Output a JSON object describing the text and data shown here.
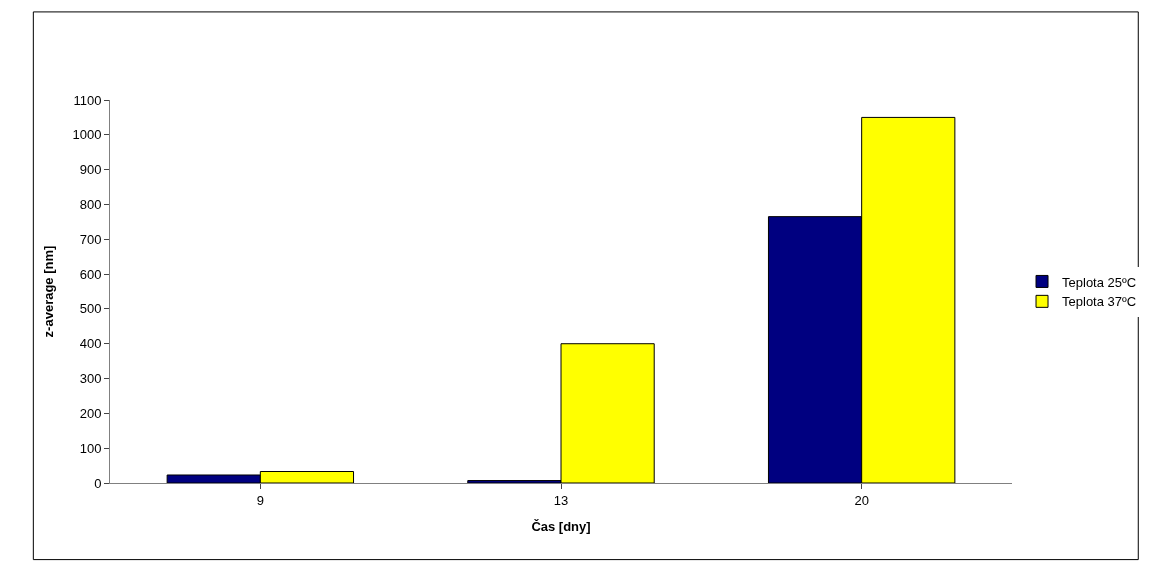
{
  "chart_data": {
    "type": "bar",
    "xlabel": "Čas [dny]",
    "ylabel": "z-average [nm]",
    "categories": [
      "9",
      "13",
      "20"
    ],
    "series": [
      {
        "name": "Teplota 25ºC",
        "color": "#000080",
        "values": [
          23,
          7,
          765
        ]
      },
      {
        "name": "Teplota 37ºC",
        "color": "#ffff00",
        "values": [
          33,
          400,
          1050
        ]
      }
    ],
    "ylim": [
      0,
      1100
    ],
    "yticks": [
      0,
      100,
      200,
      300,
      400,
      500,
      600,
      700,
      800,
      900,
      1000,
      1100
    ],
    "legend": "right"
  }
}
